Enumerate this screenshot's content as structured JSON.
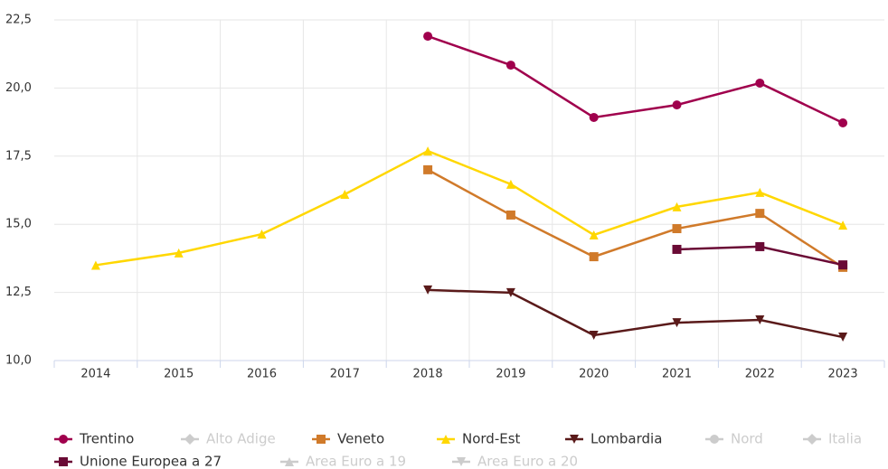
{
  "chart_data": {
    "type": "line",
    "categories": [
      "2014",
      "2015",
      "2016",
      "2017",
      "2018",
      "2019",
      "2020",
      "2021",
      "2022",
      "2023"
    ],
    "ylim": [
      10,
      22.5
    ],
    "yticks": [
      {
        "value": 10,
        "label": "10,0"
      },
      {
        "value": 12.5,
        "label": "12,5"
      },
      {
        "value": 15,
        "label": "15,0"
      },
      {
        "value": 17.5,
        "label": "17,5"
      },
      {
        "value": 20,
        "label": "20,0"
      },
      {
        "value": 22.5,
        "label": "22,5"
      }
    ],
    "grid": true,
    "legend": "bottom",
    "series": [
      {
        "name": "Trentino",
        "color": "#a0004d",
        "marker": "circle",
        "visible": true,
        "values": [
          null,
          null,
          null,
          null,
          21.9,
          20.84,
          18.92,
          19.38,
          20.18,
          18.72
        ]
      },
      {
        "name": "Alto Adige",
        "color": "#cccccc",
        "marker": "diamond",
        "visible": false,
        "values": [
          null,
          null,
          null,
          null,
          null,
          null,
          null,
          null,
          null,
          null
        ]
      },
      {
        "name": "Veneto",
        "color": "#d07a2a",
        "marker": "square",
        "visible": true,
        "values": [
          null,
          null,
          null,
          null,
          17.0,
          15.34,
          13.81,
          14.84,
          15.4,
          13.42
        ]
      },
      {
        "name": "Nord-Est",
        "color": "#ffd700",
        "marker": "triangle",
        "visible": true,
        "values": [
          13.5,
          13.95,
          14.64,
          16.1,
          17.69,
          16.47,
          14.61,
          15.64,
          16.17,
          14.97
        ]
      },
      {
        "name": "Lombardia",
        "color": "#5a1a1a",
        "marker": "triangle-down",
        "visible": true,
        "values": [
          null,
          null,
          null,
          null,
          12.59,
          12.49,
          10.93,
          11.39,
          11.49,
          10.86
        ]
      },
      {
        "name": "Nord",
        "color": "#cccccc",
        "marker": "circle",
        "visible": false,
        "values": [
          null,
          null,
          null,
          null,
          null,
          null,
          null,
          null,
          null,
          null
        ]
      },
      {
        "name": "Italia",
        "color": "#cccccc",
        "marker": "diamond",
        "visible": false,
        "values": [
          null,
          null,
          null,
          null,
          null,
          null,
          null,
          null,
          null,
          null
        ]
      },
      {
        "name": "Unione Europea a 27",
        "color": "#6a0a35",
        "marker": "square",
        "visible": true,
        "values": [
          null,
          null,
          null,
          null,
          null,
          null,
          null,
          14.08,
          14.18,
          13.51
        ]
      },
      {
        "name": "Area Euro a 19",
        "color": "#cccccc",
        "marker": "triangle",
        "visible": false,
        "values": [
          null,
          null,
          null,
          null,
          null,
          null,
          null,
          null,
          null,
          null
        ]
      },
      {
        "name": "Area Euro a 20",
        "color": "#cccccc",
        "marker": "triangle-down",
        "visible": false,
        "values": [
          null,
          null,
          null,
          null,
          null,
          null,
          null,
          null,
          null,
          null
        ]
      }
    ]
  }
}
